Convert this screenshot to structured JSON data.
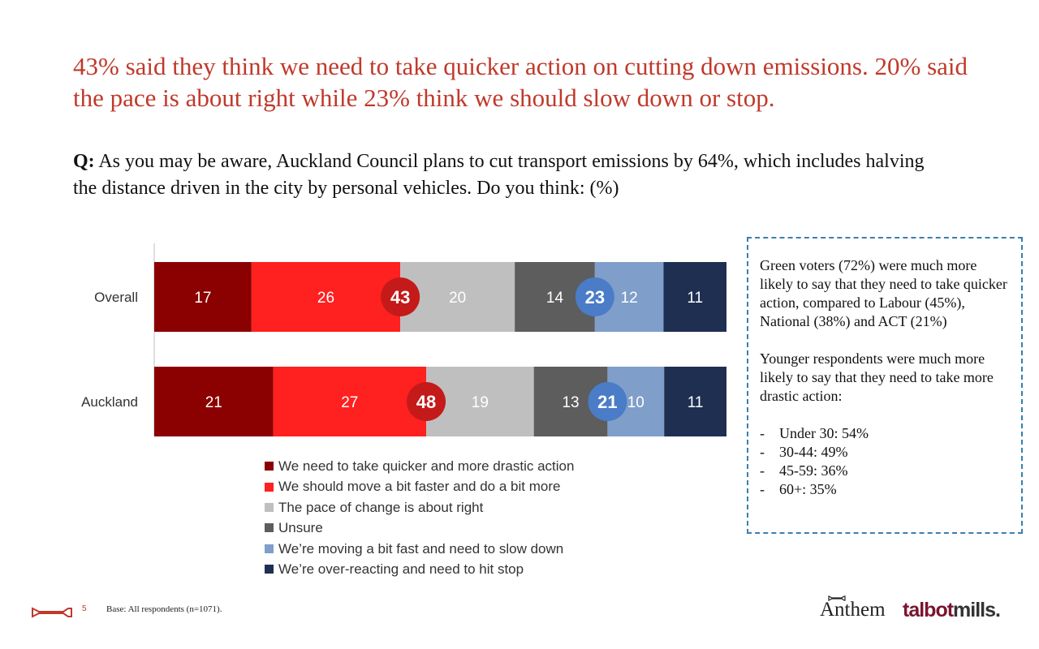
{
  "headline": "43% said they think we need to take quicker action on cutting down emissions. 20% said the pace is about right while 23% think we should slow down or stop.",
  "question": {
    "prefix": "Q:",
    "text": " As you may be aware, Auckland Council plans to cut transport emissions by 64%, which includes halving the distance driven in the city by personal vehicles. Do you think: (%)"
  },
  "chart_data": {
    "type": "bar",
    "orientation": "horizontal",
    "stacked": true,
    "categories": [
      "Overall",
      "Auckland"
    ],
    "series": [
      {
        "name": "We need to take quicker and more drastic action",
        "values": [
          17,
          21
        ],
        "color": "#8b0000"
      },
      {
        "name": "We should move a bit faster and do a bit more",
        "values": [
          26,
          27
        ],
        "color": "#ff2020"
      },
      {
        "name": "The pace of change is about right",
        "values": [
          20,
          19
        ],
        "color": "#bfbfbf"
      },
      {
        "name": "Unsure",
        "values": [
          14,
          13
        ],
        "color": "#5d5d5d"
      },
      {
        "name": "We’re moving a bit fast and need to slow down",
        "values": [
          12,
          10
        ],
        "color": "#7f9ec9"
      },
      {
        "name": "We’re over-reacting and need to hit stop",
        "values": [
          11,
          11
        ],
        "color": "#1e2f52"
      }
    ],
    "net_labels": [
      {
        "values": [
          "43",
          "48"
        ],
        "color": "#c41a1a",
        "after_series": 1
      },
      {
        "values": [
          "23",
          "21"
        ],
        "color": "#4a7cc7",
        "after_series": 3
      }
    ],
    "legend_placement": "bottom",
    "grid": false
  },
  "callout": {
    "para1": "Green voters (72%) were much more likely to say that they need to take quicker action, compared to Labour (45%), National (38%) and ACT (21%)",
    "para2": "Younger respondents were much more likely to say that they need to take more drastic action:",
    "items": [
      "Under 30: 54%",
      "30-44: 49%",
      "45-59: 36%",
      "60+: 35%"
    ],
    "dash": "-"
  },
  "footer": {
    "page_number": "5",
    "base": "Base: All respondents (n=1071).",
    "logo_anthem": "Anthem",
    "logo_talbot": "talbot",
    "logo_mills": "mills."
  }
}
